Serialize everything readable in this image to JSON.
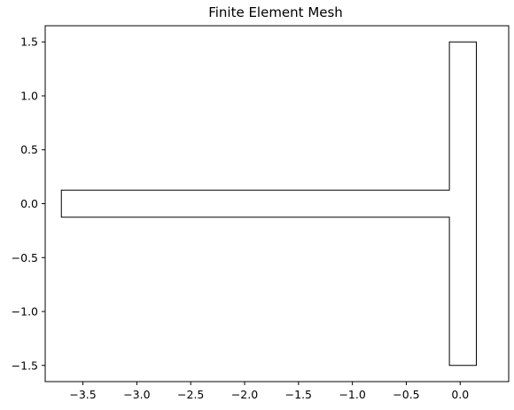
{
  "chart_data": {
    "type": "mesh",
    "title": "Finite Element Mesh",
    "xlabel": "",
    "ylabel": "",
    "xlim": [
      -3.85,
      0.45
    ],
    "ylim": [
      -1.65,
      1.65
    ],
    "xticks": [
      -3.5,
      -3.0,
      -2.5,
      -2.0,
      -1.5,
      -1.0,
      -0.5,
      0.0
    ],
    "xtick_labels": [
      "−3.5",
      "−3.0",
      "−2.5",
      "−2.0",
      "−1.5",
      "−1.0",
      "−0.5",
      "0.0"
    ],
    "yticks": [
      -1.5,
      -1.0,
      -0.5,
      0.0,
      0.5,
      1.0,
      1.5
    ],
    "ytick_labels": [
      "−1.5",
      "−1.0",
      "−0.5",
      "0.0",
      "0.5",
      "1.0",
      "1.5"
    ],
    "grid": false,
    "domain_parts": [
      {
        "name": "horizontal-arm",
        "x": [
          -3.7,
          -0.1
        ],
        "y": [
          -0.125,
          0.125
        ]
      },
      {
        "name": "vertical-bar",
        "x": [
          -0.1,
          0.15
        ],
        "y": [
          -1.5,
          1.5
        ]
      }
    ],
    "element_type": "triangle",
    "mesh_color": "#000000",
    "fill_color": "#ffffff"
  }
}
